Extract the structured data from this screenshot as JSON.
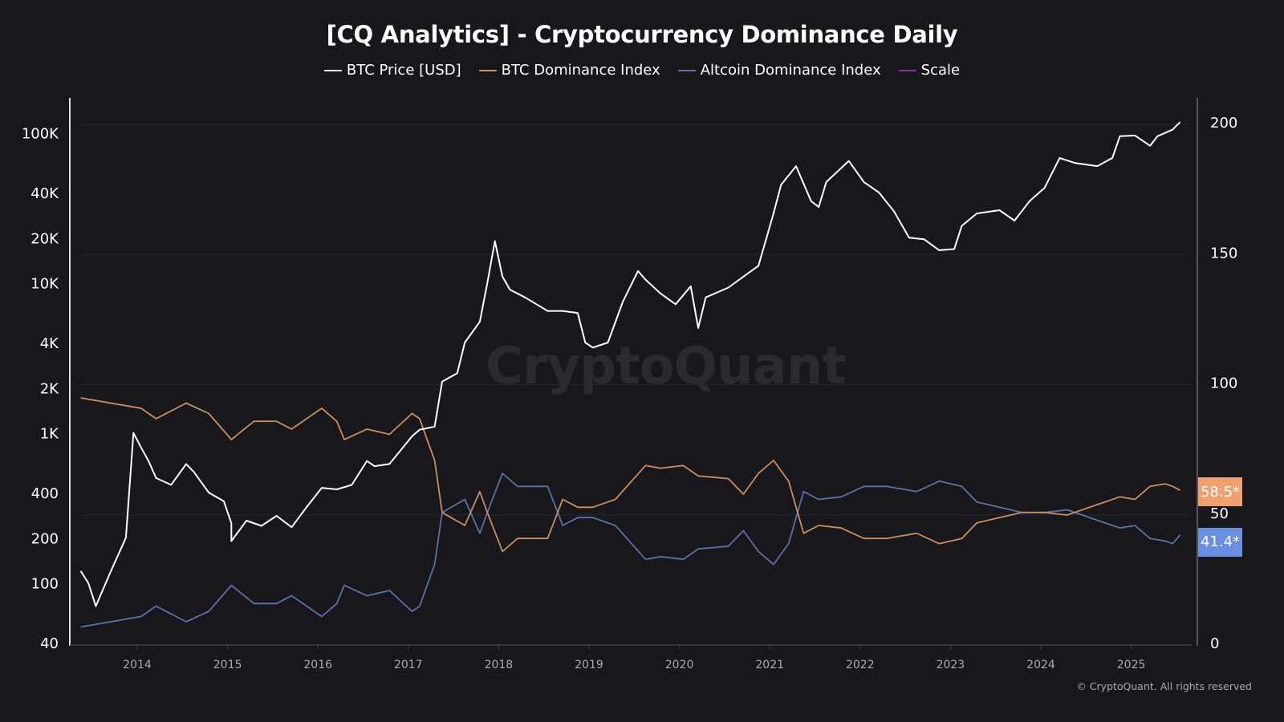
{
  "chart_data": {
    "type": "line",
    "title": "[CQ Analytics] - Cryptocurrency Dominance Daily",
    "legend_position": "top",
    "grid": true,
    "watermark": "CryptoQuant",
    "copyright": "© CryptoQuant. All rights reserved",
    "x_ticks": [
      "2014",
      "2015",
      "2016",
      "2017",
      "2018",
      "2019",
      "2020",
      "2021",
      "2022",
      "2023",
      "2024",
      "2025"
    ],
    "y_left": {
      "scale": "log",
      "range": [
        40,
        130000
      ],
      "ticks": [
        40,
        100,
        200,
        400,
        1000,
        2000,
        4000,
        10000,
        20000,
        40000,
        100000
      ],
      "tick_labels": [
        "40",
        "100",
        "200",
        "400",
        "1K",
        "2K",
        "4K",
        "10K",
        "20K",
        "40K",
        "100K"
      ]
    },
    "y_right": {
      "scale": "linear",
      "range": [
        0,
        200
      ],
      "ticks": [
        0,
        50,
        100,
        150,
        200
      ],
      "tick_labels": [
        "0",
        "50",
        "100",
        "150",
        "200"
      ]
    },
    "series": [
      {
        "name": "BTC Price [USD]",
        "axis": "left",
        "color": "#ffffff",
        "points": [
          [
            "2013-05",
            120
          ],
          [
            "2013-06",
            100
          ],
          [
            "2013-07",
            70
          ],
          [
            "2013-09",
            120
          ],
          [
            "2013-11",
            200
          ],
          [
            "2013-12",
            1000
          ],
          [
            "2014-01",
            800
          ],
          [
            "2014-02",
            650
          ],
          [
            "2014-03",
            500
          ],
          [
            "2014-05",
            450
          ],
          [
            "2014-07",
            620
          ],
          [
            "2014-08",
            550
          ],
          [
            "2014-10",
            400
          ],
          [
            "2014-12",
            350
          ],
          [
            "2015-01",
            250
          ],
          [
            "2015-01",
            190
          ],
          [
            "2015-03",
            260
          ],
          [
            "2015-05",
            240
          ],
          [
            "2015-07",
            280
          ],
          [
            "2015-09",
            235
          ],
          [
            "2015-11",
            320
          ],
          [
            "2016-01",
            430
          ],
          [
            "2016-03",
            420
          ],
          [
            "2016-05",
            450
          ],
          [
            "2016-07",
            650
          ],
          [
            "2016-08",
            600
          ],
          [
            "2016-10",
            620
          ],
          [
            "2017-01",
            950
          ],
          [
            "2017-02",
            1050
          ],
          [
            "2017-04",
            1100
          ],
          [
            "2017-05",
            2200
          ],
          [
            "2017-07",
            2500
          ],
          [
            "2017-08",
            4000
          ],
          [
            "2017-10",
            5500
          ],
          [
            "2017-11",
            10000
          ],
          [
            "2017-12",
            19000
          ],
          [
            "2018-01",
            11000
          ],
          [
            "2018-02",
            9000
          ],
          [
            "2018-04",
            8000
          ],
          [
            "2018-07",
            6500
          ],
          [
            "2018-09",
            6500
          ],
          [
            "2018-11",
            6300
          ],
          [
            "2018-12",
            4000
          ],
          [
            "2019-01",
            3700
          ],
          [
            "2019-03",
            4000
          ],
          [
            "2019-05",
            7500
          ],
          [
            "2019-07",
            12000
          ],
          [
            "2019-08",
            10500
          ],
          [
            "2019-10",
            8500
          ],
          [
            "2019-12",
            7200
          ],
          [
            "2020-02",
            9500
          ],
          [
            "2020-03",
            5000
          ],
          [
            "2020-04",
            8000
          ],
          [
            "2020-07",
            9300
          ],
          [
            "2020-09",
            11000
          ],
          [
            "2020-11",
            13000
          ],
          [
            "2021-01",
            29000
          ],
          [
            "2021-02",
            45000
          ],
          [
            "2021-04",
            60000
          ],
          [
            "2021-06",
            35000
          ],
          [
            "2021-07",
            32000
          ],
          [
            "2021-08",
            47000
          ],
          [
            "2021-11",
            65000
          ],
          [
            "2022-01",
            47000
          ],
          [
            "2022-03",
            40000
          ],
          [
            "2022-05",
            30000
          ],
          [
            "2022-07",
            20000
          ],
          [
            "2022-09",
            19500
          ],
          [
            "2022-11",
            16500
          ],
          [
            "2023-01",
            16800
          ],
          [
            "2023-02",
            24000
          ],
          [
            "2023-04",
            29000
          ],
          [
            "2023-07",
            30500
          ],
          [
            "2023-09",
            26000
          ],
          [
            "2023-11",
            35000
          ],
          [
            "2024-01",
            43000
          ],
          [
            "2024-03",
            68000
          ],
          [
            "2024-05",
            63000
          ],
          [
            "2024-08",
            60000
          ],
          [
            "2024-10",
            68000
          ],
          [
            "2024-11",
            95000
          ],
          [
            "2025-01",
            96000
          ],
          [
            "2025-03",
            82000
          ],
          [
            "2025-04",
            95000
          ],
          [
            "2025-06",
            105000
          ],
          [
            "2025-07",
            118000
          ]
        ]
      },
      {
        "name": "BTC Dominance Index",
        "axis": "right",
        "color": "#c98f62",
        "last_value_label": "58.5*",
        "label_color": "#f0a070",
        "points": [
          [
            "2013-05",
            94
          ],
          [
            "2014-01",
            90
          ],
          [
            "2014-03",
            86
          ],
          [
            "2014-07",
            92
          ],
          [
            "2014-10",
            88
          ],
          [
            "2015-01",
            78
          ],
          [
            "2015-04",
            85
          ],
          [
            "2015-07",
            85
          ],
          [
            "2015-09",
            82
          ],
          [
            "2016-01",
            90
          ],
          [
            "2016-03",
            85
          ],
          [
            "2016-04",
            78
          ],
          [
            "2016-07",
            82
          ],
          [
            "2016-10",
            80
          ],
          [
            "2017-01",
            88
          ],
          [
            "2017-02",
            86
          ],
          [
            "2017-04",
            70
          ],
          [
            "2017-05",
            50
          ],
          [
            "2017-08",
            45
          ],
          [
            "2017-10",
            58
          ],
          [
            "2017-11",
            50
          ],
          [
            "2018-01",
            35
          ],
          [
            "2018-03",
            40
          ],
          [
            "2018-07",
            40
          ],
          [
            "2018-09",
            55
          ],
          [
            "2018-11",
            52
          ],
          [
            "2019-01",
            52
          ],
          [
            "2019-04",
            55
          ],
          [
            "2019-08",
            68
          ],
          [
            "2019-10",
            67
          ],
          [
            "2020-01",
            68
          ],
          [
            "2020-03",
            64
          ],
          [
            "2020-07",
            63
          ],
          [
            "2020-09",
            57
          ],
          [
            "2020-11",
            65
          ],
          [
            "2021-01",
            70
          ],
          [
            "2021-03",
            62
          ],
          [
            "2021-05",
            42
          ],
          [
            "2021-07",
            45
          ],
          [
            "2021-10",
            44
          ],
          [
            "2022-01",
            40
          ],
          [
            "2022-04",
            40
          ],
          [
            "2022-08",
            42
          ],
          [
            "2022-11",
            38
          ],
          [
            "2023-02",
            40
          ],
          [
            "2023-04",
            46
          ],
          [
            "2023-07",
            48
          ],
          [
            "2023-10",
            50
          ],
          [
            "2024-01",
            50
          ],
          [
            "2024-04",
            49
          ],
          [
            "2024-08",
            53
          ],
          [
            "2024-11",
            56
          ],
          [
            "2025-01",
            55
          ],
          [
            "2025-03",
            60
          ],
          [
            "2025-05",
            61
          ],
          [
            "2025-06",
            60
          ],
          [
            "2025-07",
            58.5
          ]
        ]
      },
      {
        "name": "Altcoin Dominance Index",
        "axis": "right",
        "color": "#5a72a8",
        "last_value_label": "41.4*",
        "label_color": "#6b8fe0",
        "points": [
          [
            "2013-05",
            6
          ],
          [
            "2014-01",
            10
          ],
          [
            "2014-03",
            14
          ],
          [
            "2014-07",
            8
          ],
          [
            "2014-10",
            12
          ],
          [
            "2015-01",
            22
          ],
          [
            "2015-04",
            15
          ],
          [
            "2015-07",
            15
          ],
          [
            "2015-09",
            18
          ],
          [
            "2016-01",
            10
          ],
          [
            "2016-03",
            15
          ],
          [
            "2016-04",
            22
          ],
          [
            "2016-07",
            18
          ],
          [
            "2016-10",
            20
          ],
          [
            "2017-01",
            12
          ],
          [
            "2017-02",
            14
          ],
          [
            "2017-04",
            30
          ],
          [
            "2017-05",
            50
          ],
          [
            "2017-08",
            55
          ],
          [
            "2017-10",
            42
          ],
          [
            "2017-11",
            50
          ],
          [
            "2018-01",
            65
          ],
          [
            "2018-03",
            60
          ],
          [
            "2018-07",
            60
          ],
          [
            "2018-09",
            45
          ],
          [
            "2018-11",
            48
          ],
          [
            "2019-01",
            48
          ],
          [
            "2019-04",
            45
          ],
          [
            "2019-08",
            32
          ],
          [
            "2019-10",
            33
          ],
          [
            "2020-01",
            32
          ],
          [
            "2020-03",
            36
          ],
          [
            "2020-07",
            37
          ],
          [
            "2020-09",
            43
          ],
          [
            "2020-11",
            35
          ],
          [
            "2021-01",
            30
          ],
          [
            "2021-03",
            38
          ],
          [
            "2021-05",
            58
          ],
          [
            "2021-07",
            55
          ],
          [
            "2021-10",
            56
          ],
          [
            "2022-01",
            60
          ],
          [
            "2022-04",
            60
          ],
          [
            "2022-08",
            58
          ],
          [
            "2022-11",
            62
          ],
          [
            "2023-02",
            60
          ],
          [
            "2023-04",
            54
          ],
          [
            "2023-07",
            52
          ],
          [
            "2023-10",
            50
          ],
          [
            "2024-01",
            50
          ],
          [
            "2024-04",
            51
          ],
          [
            "2024-08",
            47
          ],
          [
            "2024-11",
            44
          ],
          [
            "2025-01",
            45
          ],
          [
            "2025-03",
            40
          ],
          [
            "2025-05",
            39
          ],
          [
            "2025-06",
            38
          ],
          [
            "2025-07",
            41.4
          ]
        ]
      },
      {
        "name": "Scale",
        "axis": "right",
        "color": "#8e2bb5",
        "points": []
      }
    ]
  }
}
